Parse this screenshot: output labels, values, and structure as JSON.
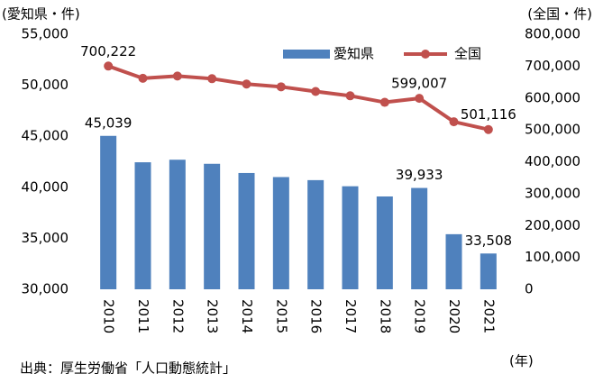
{
  "chart_data": {
    "type": "combo",
    "y_label": "(愛知県・件)",
    "y2_label": "(全国・件)",
    "x_label": "(年)",
    "source": "出典：厚生労働省「人口動態統計」",
    "categories": [
      "2010",
      "2011",
      "2012",
      "2013",
      "2014",
      "2015",
      "2016",
      "2017",
      "2018",
      "2019",
      "2020",
      "2021"
    ],
    "series": [
      {
        "name": "愛知県",
        "type": "bar",
        "color": "#4f81bd",
        "values": [
          45039,
          42450,
          42700,
          42300,
          41400,
          41000,
          40700,
          40100,
          39100,
          39933,
          35400,
          33508
        ],
        "value_labels": [
          "45,039",
          null,
          null,
          null,
          null,
          null,
          null,
          null,
          null,
          "39,933",
          null,
          "33,508"
        ]
      },
      {
        "name": "全国",
        "type": "line",
        "axis": "y2",
        "color": "#c0504d",
        "values": [
          700222,
          661895,
          668869,
          660613,
          643749,
          635156,
          620531,
          606952,
          586481,
          599007,
          525507,
          501116
        ],
        "value_labels": [
          "700,222",
          null,
          null,
          null,
          null,
          null,
          null,
          null,
          null,
          "599,007",
          null,
          "501,116"
        ]
      }
    ],
    "ylim": [
      30000,
      55000
    ],
    "yticks": [
      {
        "value": 30000,
        "label": "30,000"
      },
      {
        "value": 35000,
        "label": "35,000"
      },
      {
        "value": 40000,
        "label": "40,000"
      },
      {
        "value": 45000,
        "label": "45,000"
      },
      {
        "value": 50000,
        "label": "50,000"
      },
      {
        "value": 55000,
        "label": "55,000"
      }
    ],
    "y2lim": [
      0,
      800000
    ],
    "y2ticks": [
      0,
      {
        "value": 100000,
        "label": "100,000"
      },
      {
        "value": 200000,
        "label": "200,000"
      },
      {
        "value": 300000,
        "label": "300,000"
      },
      {
        "value": 400000,
        "label": "400,000"
      },
      {
        "value": 500000,
        "label": "500,000"
      },
      {
        "value": 600000,
        "label": "600,000"
      },
      {
        "value": 700000,
        "label": "700,000"
      },
      {
        "value": 800000,
        "label": "800,000"
      }
    ],
    "legend": "top-right",
    "grid": false
  }
}
